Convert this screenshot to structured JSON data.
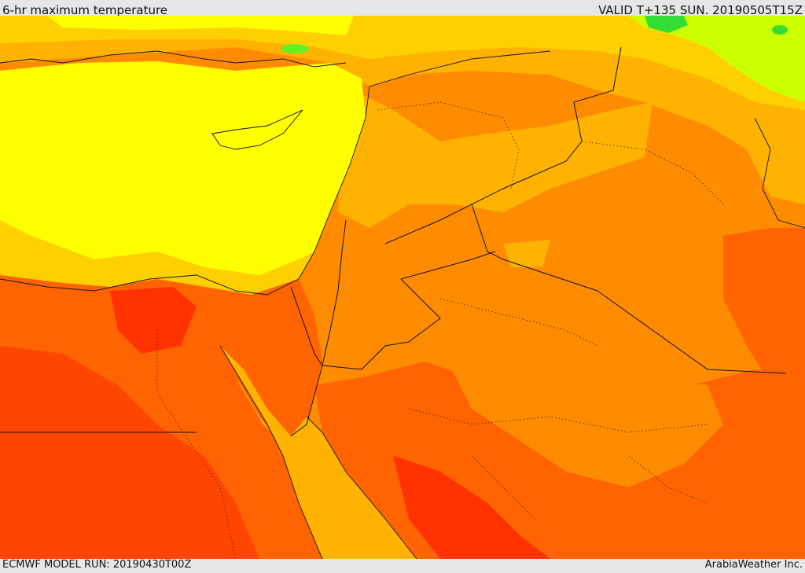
{
  "header": {
    "title": "6-hr maximum temperature",
    "valid": "VALID T+135 SUN. 20190505T15Z"
  },
  "footer": {
    "model_run": "ECMWF MODEL RUN: 20190430T00Z",
    "credit": "ArabiaWeather Inc."
  },
  "map": {
    "palette": {
      "green": "#33dd33",
      "lightgreen": "#b8f200",
      "yellow": "#ffff00",
      "lightorange": "#ffd000",
      "amber": "#ffb300",
      "orange": "#ff8c00",
      "darkorange": "#ff6400",
      "red": "#ff4600",
      "deepred": "#ff2800"
    }
  }
}
